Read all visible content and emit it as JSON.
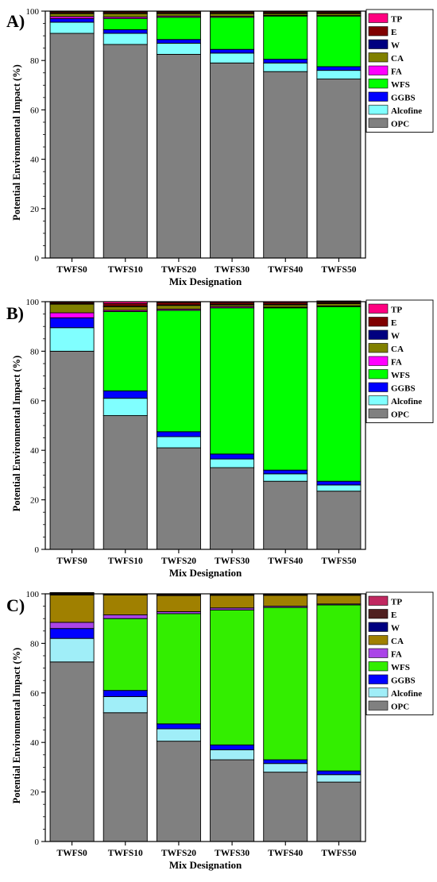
{
  "figure": {
    "shared": {
      "type": "bar",
      "stacked": true,
      "categories": [
        "TWFS0",
        "TWFS10",
        "TWFS20",
        "TWFS30",
        "TWFS40",
        "TWFS50"
      ],
      "xlabel": "Mix Designation",
      "ylabel": "Potential Environmental Impact (%)",
      "ylim": [
        0,
        100
      ],
      "yticks": [
        0,
        20,
        40,
        60,
        80,
        100
      ],
      "legend_placement": "right-top",
      "grid": false
    }
  },
  "chart_data": [
    {
      "type": "bar",
      "panel_label": "A)",
      "categories": [
        "TWFS0",
        "TWFS10",
        "TWFS20",
        "TWFS30",
        "TWFS40",
        "TWFS50"
      ],
      "xlabel": "Mix Designation",
      "ylabel": "Potential Environmental Impact (%)",
      "ylim": [
        0,
        100
      ],
      "series": [
        {
          "name": "OPC",
          "color": "#808080",
          "values": [
            91,
            86.5,
            82.5,
            79,
            75.5,
            72.5
          ]
        },
        {
          "name": "Alcofine",
          "color": "#80FFFF",
          "values": [
            4.5,
            4.5,
            4.5,
            4,
            3.5,
            3.5
          ]
        },
        {
          "name": "GGBS",
          "color": "#0000FF",
          "values": [
            1.5,
            1.5,
            1.5,
            1.5,
            1.5,
            1.5
          ]
        },
        {
          "name": "WFS",
          "color": "#00FF00",
          "values": [
            0,
            4.5,
            9,
            13,
            17.5,
            20.5
          ]
        },
        {
          "name": "FA",
          "color": "#FF00FF",
          "values": [
            0.8,
            0.6,
            0.5,
            0.4,
            0.3,
            0.2
          ]
        },
        {
          "name": "CA",
          "color": "#808000",
          "values": [
            1.2,
            1.4,
            1,
            1.1,
            0.7,
            0.8
          ]
        },
        {
          "name": "W",
          "color": "#000080",
          "values": [
            0.2,
            0.2,
            0.2,
            0.2,
            0.2,
            0.2
          ]
        },
        {
          "name": "E",
          "color": "#800000",
          "values": [
            0.5,
            0.5,
            0.5,
            0.5,
            0.5,
            0.5
          ]
        },
        {
          "name": "TP",
          "color": "#FF0080",
          "values": [
            0.3,
            0.3,
            0.3,
            0.3,
            0.3,
            0.3
          ]
        }
      ]
    },
    {
      "type": "bar",
      "panel_label": "B)",
      "categories": [
        "TWFS0",
        "TWFS10",
        "TWFS20",
        "TWFS30",
        "TWFS40",
        "TWFS50"
      ],
      "xlabel": "Mix Designation",
      "ylabel": "Potential Environmental Impact (%)",
      "ylim": [
        0,
        100
      ],
      "series": [
        {
          "name": "OPC",
          "color": "#808080",
          "values": [
            80,
            54,
            41,
            33,
            27.5,
            23.5
          ]
        },
        {
          "name": "Alcofine",
          "color": "#80FFFF",
          "values": [
            9.5,
            7,
            4.5,
            3.5,
            3,
            2.5
          ]
        },
        {
          "name": "GGBS",
          "color": "#0000FF",
          "values": [
            4,
            3,
            2,
            2,
            1.5,
            1.5
          ]
        },
        {
          "name": "WFS",
          "color": "#00FF00",
          "values": [
            0,
            32,
            49,
            59,
            65.5,
            70.5
          ]
        },
        {
          "name": "FA",
          "color": "#FF00FF",
          "values": [
            2,
            0.5,
            0.5,
            0.5,
            0.3,
            0.3
          ]
        },
        {
          "name": "CA",
          "color": "#808000",
          "values": [
            3.5,
            1.5,
            1.5,
            0.7,
            0.9,
            0.9
          ]
        },
        {
          "name": "W",
          "color": "#000080",
          "values": [
            0.2,
            0.2,
            0.2,
            0.2,
            0.2,
            0.2
          ]
        },
        {
          "name": "E",
          "color": "#800000",
          "values": [
            0.5,
            1,
            1,
            0.7,
            0.7,
            0.5
          ]
        },
        {
          "name": "TP",
          "color": "#FF0080",
          "values": [
            0.3,
            0.8,
            0.3,
            0.4,
            0.4,
            0.4
          ]
        }
      ]
    },
    {
      "type": "bar",
      "panel_label": "C)",
      "categories": [
        "TWFS0",
        "TWFS10",
        "TWFS20",
        "TWFS30",
        "TWFS40",
        "TWFS50"
      ],
      "xlabel": "Mix Designation",
      "ylabel": "Potential Environmental Impact (%)",
      "ylim": [
        0,
        100
      ],
      "series": [
        {
          "name": "OPC",
          "color": "#808080",
          "values": [
            72.5,
            52,
            40.5,
            33,
            28,
            24
          ]
        },
        {
          "name": "Alcofine",
          "color": "#A0EEF8",
          "values": [
            9.5,
            6.5,
            5,
            4,
            3.5,
            3
          ]
        },
        {
          "name": "GGBS",
          "color": "#0000FF",
          "values": [
            4,
            2.5,
            2,
            2,
            1.5,
            1.5
          ]
        },
        {
          "name": "WFS",
          "color": "#33EE00",
          "values": [
            0,
            29,
            44.5,
            54.5,
            61.5,
            67
          ]
        },
        {
          "name": "FA",
          "color": "#AA44E8",
          "values": [
            2.5,
            1.5,
            0.8,
            0.8,
            0.5,
            0.4
          ]
        },
        {
          "name": "CA",
          "color": "#A08000",
          "values": [
            11,
            8,
            6.5,
            5.1,
            4.4,
            3.5
          ]
        },
        {
          "name": "W",
          "color": "#000080",
          "values": [
            0.1,
            0.1,
            0.1,
            0.1,
            0.1,
            0.1
          ]
        },
        {
          "name": "E",
          "color": "#502020",
          "values": [
            0.8,
            0.2,
            0.4,
            0.3,
            0.3,
            0.3
          ]
        },
        {
          "name": "TP",
          "color": "#C02860",
          "values": [
            0.1,
            0.2,
            0.2,
            0.2,
            0.2,
            0.2
          ]
        }
      ]
    }
  ]
}
